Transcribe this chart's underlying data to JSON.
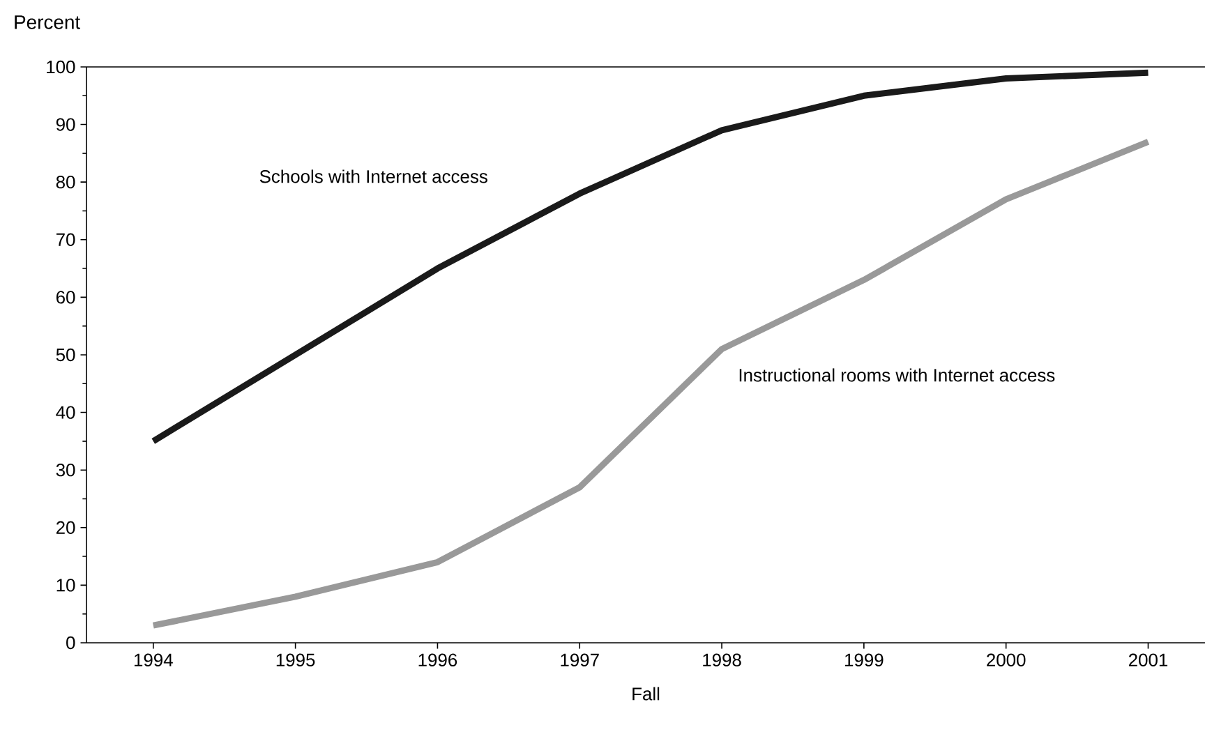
{
  "chart_data": {
    "type": "line",
    "xlabel": "Fall",
    "ylabel": "Percent",
    "categories": [
      "1994",
      "1995",
      "1996",
      "1997",
      "1998",
      "1999",
      "2000",
      "2001"
    ],
    "series": [
      {
        "name": "Schools with Internet access",
        "color": "#1a1a1a",
        "values": [
          35,
          50,
          65,
          78,
          89,
          95,
          98,
          99
        ]
      },
      {
        "name": "Instructional rooms with Internet access",
        "color": "#999999",
        "values": [
          3,
          8,
          14,
          27,
          51,
          63,
          77,
          87
        ]
      }
    ],
    "ylim": [
      0,
      100
    ],
    "yticks": [
      0,
      10,
      20,
      30,
      40,
      50,
      60,
      70,
      80,
      90,
      100
    ],
    "grid": false,
    "legend": false,
    "marker": "none",
    "line_style": "solid"
  }
}
